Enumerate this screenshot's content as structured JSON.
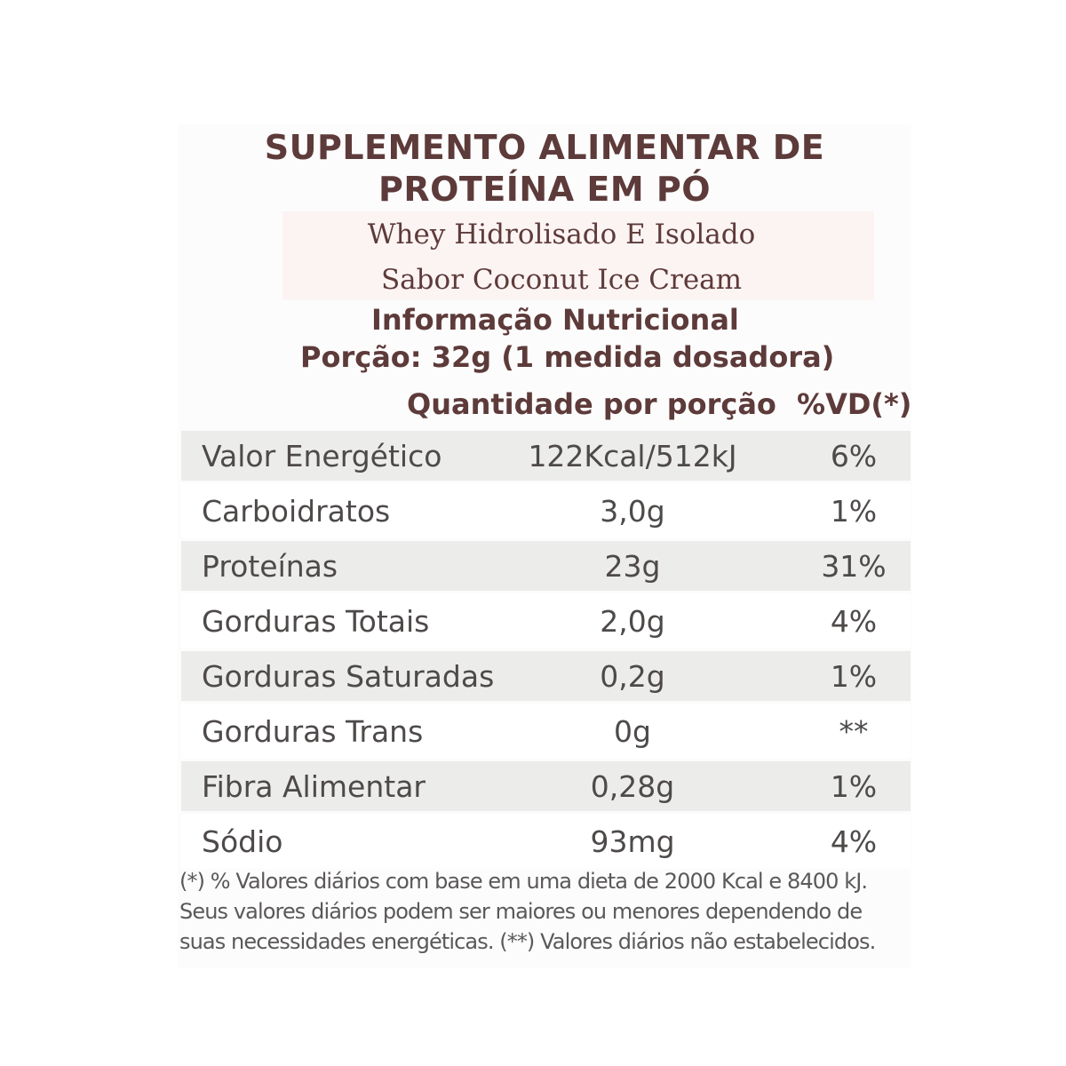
{
  "label": {
    "title_line1": "SUPLEMENTO ALIMENTAR DE",
    "title_line2": "PROTEÍNA EM PÓ",
    "product_name": "Whey Hidrolisado E Isolado",
    "flavor": "Sabor Coconut Ice Cream",
    "info_heading": "Informação Nutricional",
    "portion": "Porção: 32g (1 medida dosadora)",
    "column_quantity": "Quantidade por porção",
    "column_dv": "%VD(*)"
  },
  "nutrients": [
    {
      "name": "Valor Energético",
      "amount": "122Kcal/512kJ",
      "dv": "6%"
    },
    {
      "name": "Carboidratos",
      "amount": "3,0g",
      "dv": "1%"
    },
    {
      "name": "Proteínas",
      "amount": "23g",
      "dv": "31%"
    },
    {
      "name": "Gorduras Totais",
      "amount": "2,0g",
      "dv": "4%"
    },
    {
      "name": "Gorduras Saturadas",
      "amount": "0,2g",
      "dv": "1%"
    },
    {
      "name": "Gorduras Trans",
      "amount": "0g",
      "dv": "**"
    },
    {
      "name": "Fibra Alimentar",
      "amount": "0,28g",
      "dv": "1%"
    },
    {
      "name": "Sódio",
      "amount": "93mg",
      "dv": "4%"
    }
  ],
  "footnote": {
    "line1": "(*) % Valores diários com base em uma dieta de 2000 Kcal e 8400 kJ.",
    "line2": "Seus valores diários podem ser maiores ou menores dependendo de",
    "line3": "suas necessidades energéticas. (**) Valores diários não estabelecidos."
  },
  "colors": {
    "heading": "#5d3b3a",
    "body_text": "#4d4a49",
    "shaded_row": "#ececeb",
    "band": "#fcf4f3"
  }
}
